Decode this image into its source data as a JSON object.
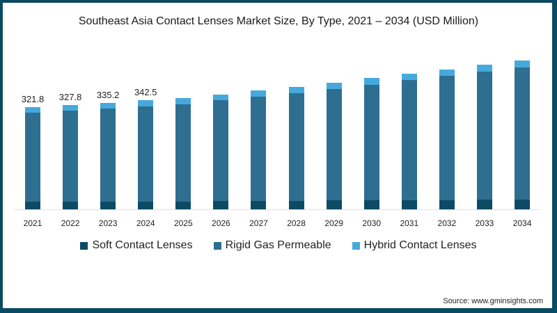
{
  "chart_data": {
    "type": "bar",
    "stacked": true,
    "title": "Southeast Asia Contact Lenses Market Size, By Type, 2021 – 2034 (USD Million)",
    "xlabel": "",
    "ylabel": "",
    "categories": [
      "2021",
      "2022",
      "2023",
      "2024",
      "2025",
      "2026",
      "2027",
      "2028",
      "2029",
      "2030",
      "2031",
      "2032",
      "2033",
      "2034"
    ],
    "series": [
      {
        "name": "Soft Contact Lenses",
        "color": "#0d4a63",
        "values": [
          23.0,
          23.5,
          24.0,
          24.5,
          25.0,
          25.6,
          26.2,
          26.8,
          27.4,
          28.0,
          28.6,
          29.2,
          29.8,
          30.4
        ]
      },
      {
        "name": "Rigid Gas Permeable",
        "color": "#2e6e90",
        "values": [
          282.0,
          286.8,
          293.2,
          299.6,
          305.9,
          317.2,
          328.4,
          339.7,
          351.9,
          364.6,
          377.4,
          390.4,
          403.6,
          417.0
        ]
      },
      {
        "name": "Hybrid Contact Lenses",
        "color": "#45a9dd",
        "values": [
          16.8,
          17.5,
          18.0,
          18.4,
          18.6,
          19.0,
          19.3,
          19.6,
          19.9,
          20.2,
          20.5,
          20.8,
          21.1,
          21.4
        ]
      }
    ],
    "totals": [
      321.8,
      327.8,
      335.2,
      342.5,
      349.5,
      361.8,
      373.9,
      386.1,
      399.2,
      412.8,
      426.5,
      440.4,
      454.5,
      468.8
    ],
    "data_labels": [
      {
        "category": "2021",
        "value": "321.8"
      },
      {
        "category": "2022",
        "value": "327.8"
      },
      {
        "category": "2023",
        "value": "335.2"
      },
      {
        "category": "2024",
        "value": "342.5"
      }
    ],
    "legend_position": "bottom",
    "grid": false,
    "ylim": [
      0,
      500
    ]
  },
  "legend": {
    "items": [
      {
        "label": "Soft Contact Lenses",
        "color": "#0d4a63"
      },
      {
        "label": "Rigid Gas Permeable",
        "color": "#2e6e90"
      },
      {
        "label": "Hybrid Contact Lenses",
        "color": "#45a9dd"
      }
    ]
  },
  "source": "Source: www.gminsights.com"
}
